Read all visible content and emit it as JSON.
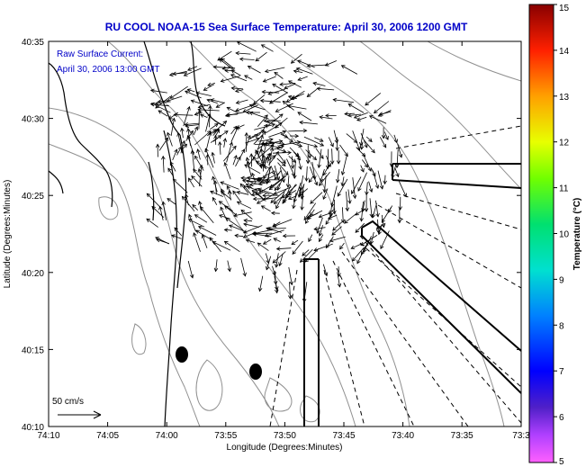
{
  "title": "RU COOL  NOAA-15  Sea Surface Temperature:  April 30, 2006 1200 GMT",
  "annotation": {
    "line1": "Raw Surface Current:",
    "line2": "April 30, 2006 13:00 GMT"
  },
  "scale_label": "50 cm/s",
  "x_axis": {
    "label": "Longitude (Degrees:Minutes)",
    "ticks": [
      "74:10",
      "74:05",
      "74:00",
      "73:55",
      "73:50",
      "73:45",
      "73:40",
      "73:35",
      "73:3"
    ]
  },
  "y_axis": {
    "label": "Latitude (Degrees:Minutes)",
    "ticks": [
      "40:35",
      "40:30",
      "40:25",
      "40:20",
      "40:15",
      "40:10"
    ]
  },
  "colorbar": {
    "label": "Temperature (°C)",
    "ticks": [
      "15",
      "14",
      "13",
      "12",
      "11",
      "10",
      "9",
      "8",
      "7",
      "6",
      "5"
    ],
    "range": [
      5,
      15
    ]
  },
  "colors": {
    "title": "#0000c8",
    "land_line": "#000000",
    "contour": "#909090"
  },
  "icons": [
    "current-vector-arrow",
    "scale-arrow",
    "radar-beam-outline",
    "buoy-marker"
  ]
}
